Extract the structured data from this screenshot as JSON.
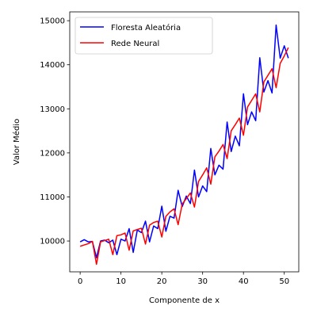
{
  "chart_data": {
    "type": "line",
    "title": "",
    "xlabel": "Componente de x",
    "ylabel": "Valor Médio",
    "xlim": [
      -2.55,
      53.55
    ],
    "ylim": [
      9300,
      15200
    ],
    "xticks": [
      0,
      10,
      20,
      30,
      40,
      50
    ],
    "yticks": [
      10000,
      11000,
      12000,
      13000,
      14000,
      15000
    ],
    "grid": false,
    "legend_position": "top-left",
    "x": [
      0,
      1,
      2,
      3,
      4,
      5,
      6,
      7,
      8,
      9,
      10,
      11,
      12,
      13,
      14,
      15,
      16,
      17,
      18,
      19,
      20,
      21,
      22,
      23,
      24,
      25,
      26,
      27,
      28,
      29,
      30,
      31,
      32,
      33,
      34,
      35,
      36,
      37,
      38,
      39,
      40,
      41,
      42,
      43,
      44,
      45,
      46,
      47,
      48,
      49,
      50,
      51
    ],
    "series": [
      {
        "name": "Floresta Aleatória",
        "color": "#0000ff",
        "values": [
          9980,
          10030,
          9980,
          9990,
          9620,
          10000,
          10020,
          9960,
          10020,
          9690,
          10040,
          10000,
          10280,
          9740,
          10250,
          10190,
          10450,
          9980,
          10340,
          10280,
          10790,
          10220,
          10560,
          10520,
          11150,
          10780,
          11020,
          10850,
          11610,
          11000,
          11250,
          11120,
          12100,
          11500,
          11720,
          11630,
          12700,
          12030,
          12380,
          12160,
          13340,
          12640,
          12930,
          12730,
          14160,
          13380,
          13640,
          13360,
          14900,
          14150,
          14430,
          14150
        ]
      },
      {
        "name": "Rede Neural",
        "color": "#ff0000",
        "values": [
          9880,
          9910,
          9940,
          9990,
          9470,
          9980,
          10010,
          10040,
          9690,
          10120,
          10140,
          10180,
          9790,
          10230,
          10260,
          10290,
          9930,
          10360,
          10420,
          10450,
          10090,
          10560,
          10660,
          10730,
          10370,
          10840,
          10960,
          11090,
          10770,
          11350,
          11500,
          11660,
          11290,
          11910,
          12040,
          12190,
          11870,
          12500,
          12640,
          12790,
          12400,
          13040,
          13190,
          13340,
          12930,
          13610,
          13760,
          13910,
          13480,
          14030,
          14200,
          14390
        ]
      }
    ]
  }
}
